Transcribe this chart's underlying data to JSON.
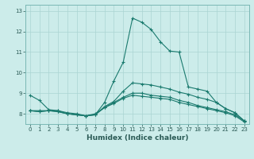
{
  "xlabel": "Humidex (Indice chaleur)",
  "background_color": "#ccecea",
  "grid_color": "#aad4d2",
  "line_color": "#1a7a6e",
  "xlim": [
    -0.5,
    23.5
  ],
  "ylim": [
    7.5,
    13.3
  ],
  "yticks": [
    8,
    9,
    10,
    11,
    12,
    13
  ],
  "xticks": [
    0,
    1,
    2,
    3,
    4,
    5,
    6,
    7,
    8,
    9,
    10,
    11,
    12,
    13,
    14,
    15,
    16,
    17,
    18,
    19,
    20,
    21,
    22,
    23
  ],
  "lines": [
    {
      "x": [
        0,
        1,
        2,
        3,
        4,
        5,
        6,
        7,
        8,
        9,
        10,
        11,
        12,
        13,
        14,
        15,
        16,
        17,
        18,
        19,
        20,
        21,
        22,
        23
      ],
      "y": [
        8.9,
        8.65,
        8.2,
        8.15,
        8.0,
        7.95,
        7.9,
        7.95,
        8.55,
        9.6,
        10.5,
        12.65,
        12.45,
        12.1,
        11.5,
        11.05,
        11.0,
        9.3,
        9.2,
        9.1,
        8.55,
        8.25,
        8.05,
        7.65
      ]
    },
    {
      "x": [
        0,
        1,
        2,
        3,
        4,
        5,
        6,
        7,
        8,
        9,
        10,
        11,
        12,
        13,
        14,
        15,
        16,
        17,
        18,
        19,
        20,
        21,
        22,
        23
      ],
      "y": [
        8.15,
        8.15,
        8.15,
        8.15,
        8.05,
        8.0,
        7.9,
        8.0,
        8.3,
        8.5,
        8.75,
        8.9,
        8.85,
        8.8,
        8.75,
        8.7,
        8.55,
        8.45,
        8.35,
        8.25,
        8.15,
        8.05,
        7.9,
        7.6
      ]
    },
    {
      "x": [
        0,
        1,
        2,
        3,
        4,
        5,
        6,
        7,
        8,
        9,
        10,
        11,
        12,
        13,
        14,
        15,
        16,
        17,
        18,
        19,
        20,
        21,
        22,
        23
      ],
      "y": [
        8.15,
        8.1,
        8.15,
        8.1,
        8.0,
        7.95,
        7.9,
        7.95,
        8.3,
        8.55,
        8.8,
        9.0,
        9.0,
        8.9,
        8.85,
        8.8,
        8.65,
        8.55,
        8.4,
        8.3,
        8.2,
        8.1,
        7.95,
        7.65
      ]
    },
    {
      "x": [
        0,
        1,
        2,
        3,
        4,
        5,
        6,
        7,
        8,
        9,
        10,
        11,
        12,
        13,
        14,
        15,
        16,
        17,
        18,
        19,
        20,
        21,
        22,
        23
      ],
      "y": [
        8.15,
        8.1,
        8.15,
        8.1,
        8.0,
        7.95,
        7.9,
        7.95,
        8.35,
        8.6,
        9.1,
        9.5,
        9.45,
        9.4,
        9.3,
        9.2,
        9.05,
        8.95,
        8.8,
        8.7,
        8.55,
        8.25,
        8.05,
        7.65
      ]
    }
  ]
}
